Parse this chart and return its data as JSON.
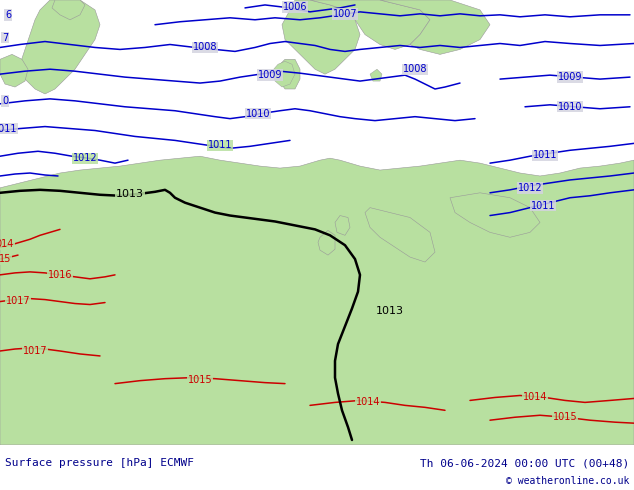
{
  "title_left": "Surface pressure [hPa] ECMWF",
  "title_right": "Th 06-06-2024 00:00 UTC (00+48)",
  "copyright": "© weatheronline.co.uk",
  "sea_color": "#d4d4e0",
  "land_color": "#b8e0a0",
  "blue_color": "#0000cc",
  "black_color": "#000000",
  "red_color": "#cc0000",
  "coast_color": "#999999",
  "bottom_text_color": "#00008b",
  "figsize": [
    6.34,
    4.9
  ],
  "dpi": 100,
  "font_size_bottom": 8,
  "font_size_label": 7
}
